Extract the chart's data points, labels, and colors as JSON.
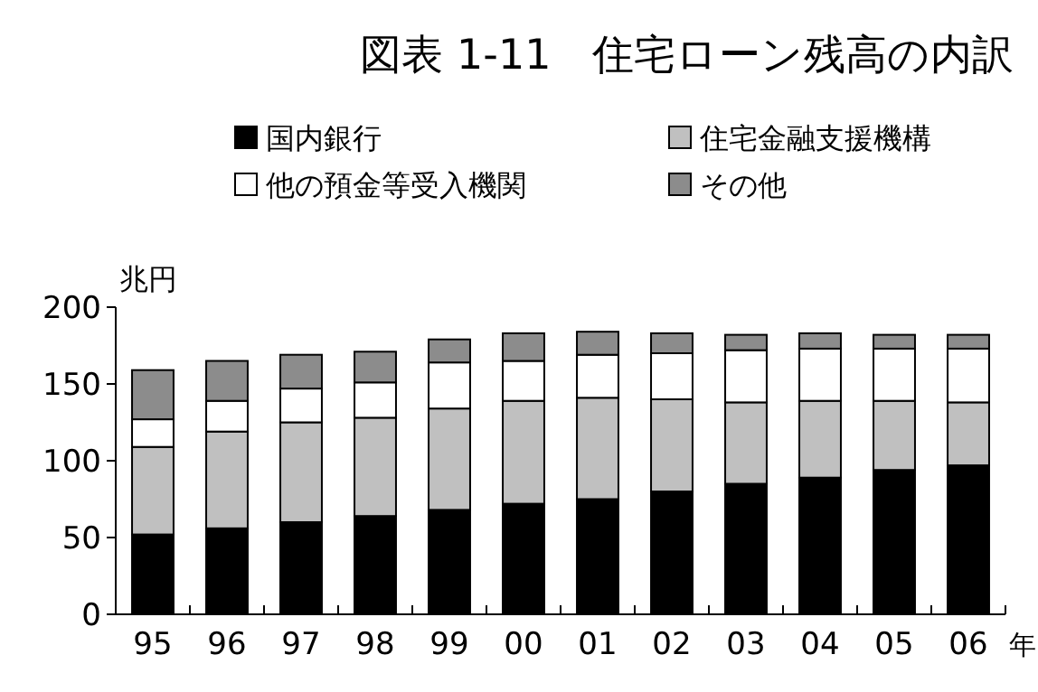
{
  "chart_data": {
    "type": "bar",
    "stacked": true,
    "title": "図表 1-11　住宅ローン残高の内訳",
    "ylabel": "兆円",
    "xlabel": "年",
    "categories": [
      "95",
      "96",
      "97",
      "98",
      "99",
      "00",
      "01",
      "02",
      "03",
      "04",
      "05",
      "06"
    ],
    "series": [
      {
        "name": "国内銀行",
        "color": "#000000",
        "values": [
          52,
          56,
          60,
          64,
          68,
          72,
          75,
          80,
          85,
          89,
          94,
          97
        ]
      },
      {
        "name": "住宅金融支援機構",
        "color": "#c0c0c0",
        "values": [
          57,
          63,
          65,
          64,
          66,
          67,
          66,
          60,
          53,
          50,
          45,
          41
        ]
      },
      {
        "name": "他の預金等受入機関",
        "color": "#ffffff",
        "values": [
          18,
          20,
          22,
          23,
          30,
          26,
          28,
          30,
          34,
          34,
          34,
          35
        ]
      },
      {
        "name": "その他",
        "color": "#8c8c8c",
        "values": [
          32,
          26,
          22,
          20,
          15,
          18,
          15,
          13,
          10,
          10,
          9,
          9
        ]
      }
    ],
    "ylim": [
      0,
      200
    ],
    "yticks": [
      0,
      50,
      100,
      150,
      200
    ],
    "grid": false,
    "legend": "top"
  }
}
